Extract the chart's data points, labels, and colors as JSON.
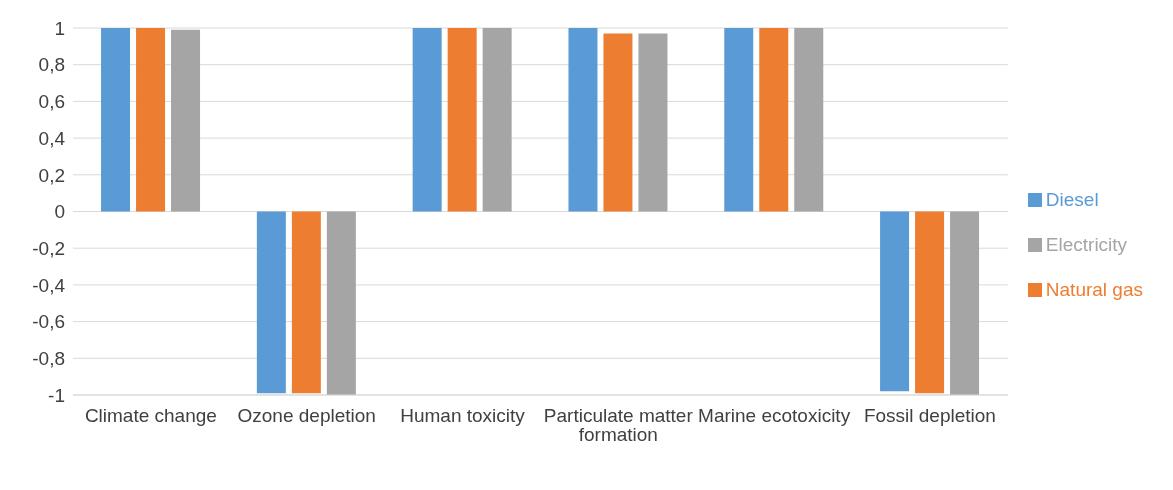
{
  "chart_data": {
    "type": "bar",
    "categories": [
      "Climate change",
      "Ozone depletion",
      "Human toxicity",
      "Particulate matter formation",
      "Marine ecotoxicity",
      "Fossil depletion"
    ],
    "series": [
      {
        "name": "Diesel",
        "color": "#5b9bd5",
        "values": [
          1,
          -0.99,
          1,
          1,
          1,
          -0.98
        ]
      },
      {
        "name": "Natural gas",
        "color": "#ed7d31",
        "values": [
          1,
          -0.99,
          1,
          0.97,
          1,
          -0.99
        ]
      },
      {
        "name": "Electricity",
        "color": "#a5a5a5",
        "values": [
          0.99,
          -1,
          1,
          0.97,
          1,
          -1
        ]
      }
    ],
    "ylim": [
      -1,
      1
    ],
    "yticks": [
      {
        "value": -1,
        "label": "-1"
      },
      {
        "value": -0.8,
        "label": "-0,8"
      },
      {
        "value": -0.6,
        "label": "-0,6"
      },
      {
        "value": -0.4,
        "label": "-0,4"
      },
      {
        "value": -0.2,
        "label": "-0,2"
      },
      {
        "value": 0,
        "label": "0"
      },
      {
        "value": 0.2,
        "label": "0,2"
      },
      {
        "value": 0.4,
        "label": "0,4"
      },
      {
        "value": 0.6,
        "label": "0,6"
      },
      {
        "value": 0.8,
        "label": "0,8"
      },
      {
        "value": 1,
        "label": "1"
      }
    ],
    "grid": "y",
    "legend": "right"
  }
}
